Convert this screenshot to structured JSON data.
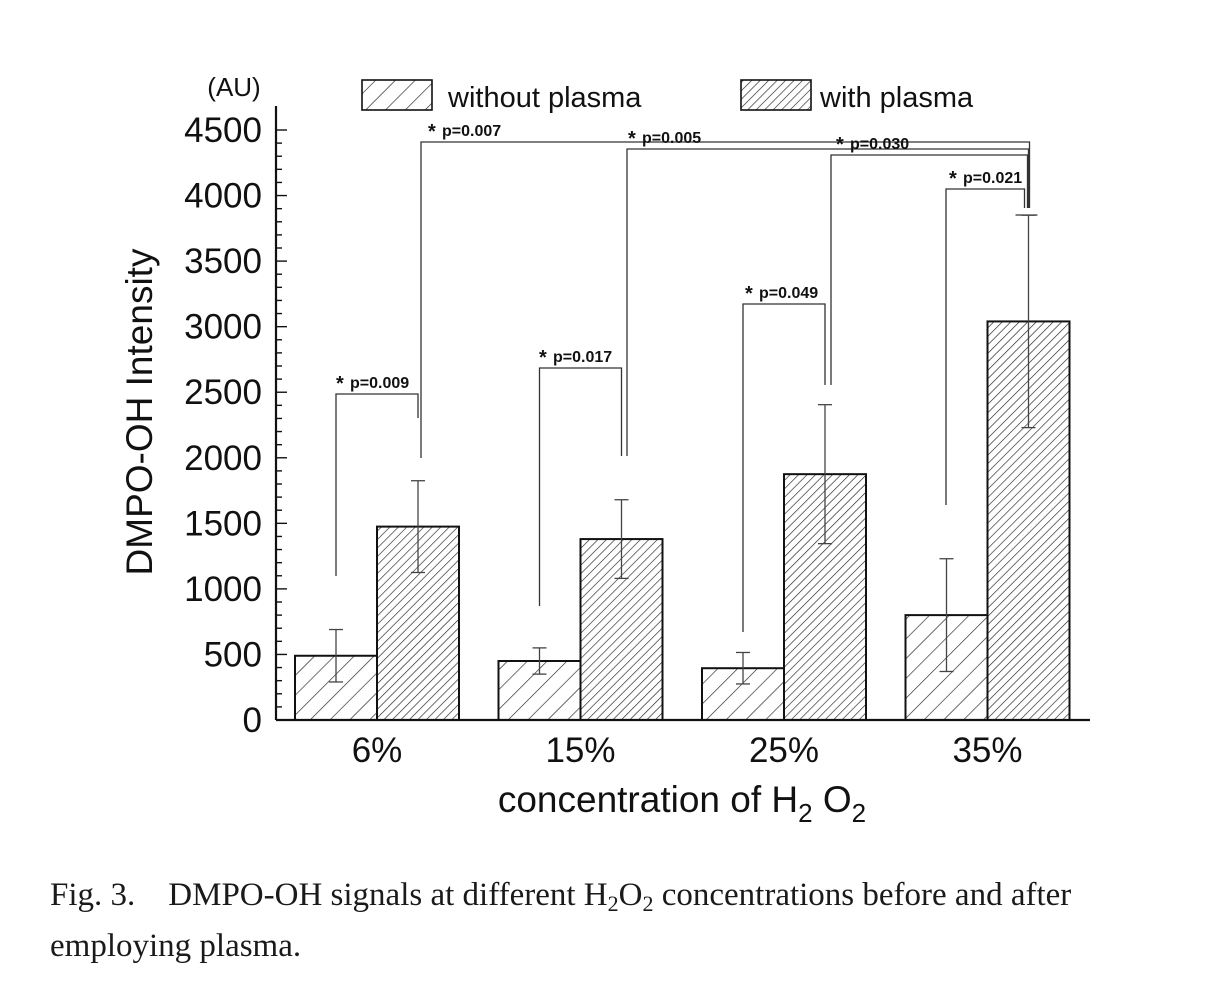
{
  "chart_data": {
    "type": "bar",
    "categories": [
      "6%",
      "15%",
      "25%",
      "35%"
    ],
    "series": [
      {
        "name": "without plasma",
        "values": [
          490,
          450,
          395,
          800
        ],
        "errors": [
          200,
          100,
          120,
          430
        ]
      },
      {
        "name": "with plasma",
        "values": [
          1475,
          1380,
          1875,
          3040
        ],
        "errors": [
          350,
          300,
          530,
          810
        ]
      }
    ],
    "ylim": [
      0,
      4500
    ],
    "yticks": [
      0,
      500,
      1000,
      1500,
      2000,
      2500,
      3000,
      3500,
      4000,
      4500
    ],
    "ylabel": "DMPO-OH Intensity",
    "yunit": "(AU)",
    "xlabel": {
      "main": "concentration of H",
      "sub1": "2",
      "mid": " O",
      "sub2": "2"
    },
    "legend": {
      "position": "top",
      "entries": [
        "without plasma",
        "with plasma"
      ]
    },
    "grid": false,
    "significance": [
      {
        "star": "*",
        "text": "p=0.009"
      },
      {
        "star": "*",
        "text": "p=0.017"
      },
      {
        "star": "*",
        "text": "p=0.049"
      },
      {
        "star": "*",
        "text": "p=0.007"
      },
      {
        "star": "*",
        "text": "p=0.005"
      },
      {
        "star": "*",
        "text": "p=0.030"
      },
      {
        "star": "*",
        "text": "p=0.021"
      }
    ]
  },
  "caption": {
    "fig": "Fig. 3.",
    "text_a": "DMPO-OH signals at different H",
    "sub1": "2",
    "text_b": "O",
    "sub2": "2",
    "text_c": " concentrations before and after employing plasma."
  }
}
